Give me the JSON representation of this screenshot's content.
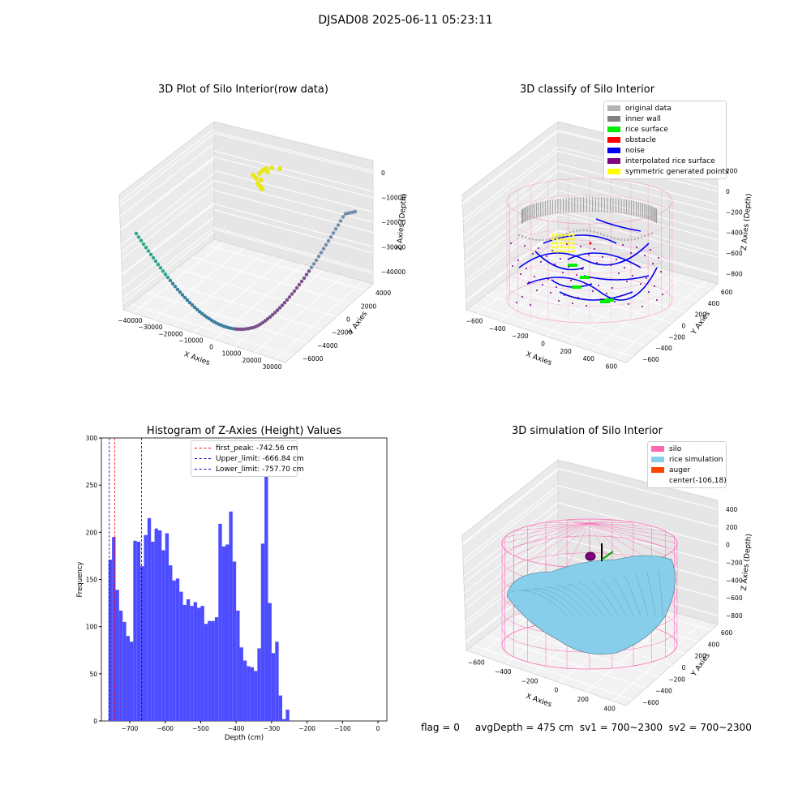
{
  "suptitle": "DJSAD08 2025-06-11 05:23:11",
  "footer": "flag = 0     avgDepth = 475 cm  sv1 = 700~2300  sv2 = 700~2300",
  "colors": {
    "original": "#b3b3b3",
    "inner_wall": "#808080",
    "rice_surface": "#00ee00",
    "obstacle": "#ff0000",
    "noise": "#0000ee",
    "interpolated": "#800080",
    "symmetric": "#ffff00",
    "silo": "#ff69b4",
    "rice_sim": "#87ceeb",
    "auger": "#ff4500",
    "hist": "#4d4dff"
  },
  "chart_data": [
    {
      "type": "scatter",
      "title": "3D Plot of Silo Interior(row data)",
      "xlabel": "X Axies",
      "ylabel": "Y Axies",
      "zlabel": "Z Axies (Depth)",
      "x_ticks": [
        "−40000",
        "−30000",
        "−20000",
        "−10000",
        "0",
        "10000",
        "20000",
        "30000"
      ],
      "y_ticks": [
        "−6000",
        "−4000",
        "−2000",
        "0",
        "2000",
        "4000"
      ],
      "z_ticks": [
        "0",
        "−10000",
        "−20000",
        "−30000",
        "−40000"
      ]
    },
    {
      "type": "scatter",
      "title": "3D classify of Silo Interior",
      "xlabel": "X Axies",
      "ylabel": "Y Axies",
      "zlabel": "Z Axies (Depth)",
      "x_ticks": [
        "−600",
        "−400",
        "−200",
        "0",
        "200",
        "400",
        "600"
      ],
      "y_ticks": [
        "−600",
        "−400",
        "−200",
        "0",
        "200",
        "400",
        "600"
      ],
      "z_ticks": [
        "200",
        "0",
        "−200",
        "−400",
        "−600",
        "−800"
      ],
      "legend": [
        "original data",
        "inner wall",
        "rice surface",
        "obstacle",
        "noise",
        "interpolated rice surface",
        "symmetric generated points"
      ]
    },
    {
      "type": "bar",
      "title": "Histogram of Z-Axies (Height) Values",
      "xlabel": "Depth (cm)",
      "ylabel": "Frequency",
      "xlim": [
        -780,
        25
      ],
      "ylim": [
        0,
        300
      ],
      "x_ticks": [
        -700,
        -600,
        -500,
        -400,
        -300,
        -200,
        -100,
        0
      ],
      "x_tick_labels": [
        "−700",
        "−600",
        "−500",
        "−400",
        "−300",
        "−200",
        "−100",
        "0"
      ],
      "y_ticks": [
        0,
        50,
        100,
        150,
        200,
        250,
        300
      ],
      "bin_start": -760,
      "bin_width": 10,
      "values": [
        171,
        195,
        139,
        117,
        105,
        90,
        84,
        191,
        190,
        164,
        197,
        215,
        190,
        204,
        202,
        181,
        199,
        165,
        149,
        151,
        137,
        123,
        129,
        122,
        126,
        120,
        122,
        103,
        106,
        106,
        110,
        209,
        185,
        187,
        222,
        169,
        117,
        78,
        64,
        58,
        57,
        53,
        77,
        188,
        287,
        125,
        72,
        84,
        27,
        2,
        12
      ],
      "vlines": [
        {
          "x": -742.56,
          "label": "first_peak: -742.56 cm",
          "color": "#ff0000"
        },
        {
          "x": -666.84,
          "label": "Upper_limit: -666.84 cm",
          "color": "#0000cc"
        },
        {
          "x": -757.7,
          "label": "Lower_limit: -757.70 cm",
          "color": "#0000cc"
        }
      ]
    },
    {
      "type": "surface",
      "title": "3D simulation of Silo Interior",
      "xlabel": "X Axies",
      "ylabel": "Y Axies",
      "zlabel": "Z Axies (Depth)",
      "x_ticks": [
        "−600",
        "−400",
        "−200",
        "0",
        "200",
        "400"
      ],
      "y_ticks": [
        "−600",
        "−400",
        "−200",
        "0",
        "200",
        "400",
        "600"
      ],
      "z_ticks": [
        "400",
        "200",
        "0",
        "−200",
        "−400",
        "−600",
        "−800"
      ],
      "legend": [
        "silo",
        "rice simulation",
        "auger",
        "center(-106,18)"
      ]
    }
  ]
}
